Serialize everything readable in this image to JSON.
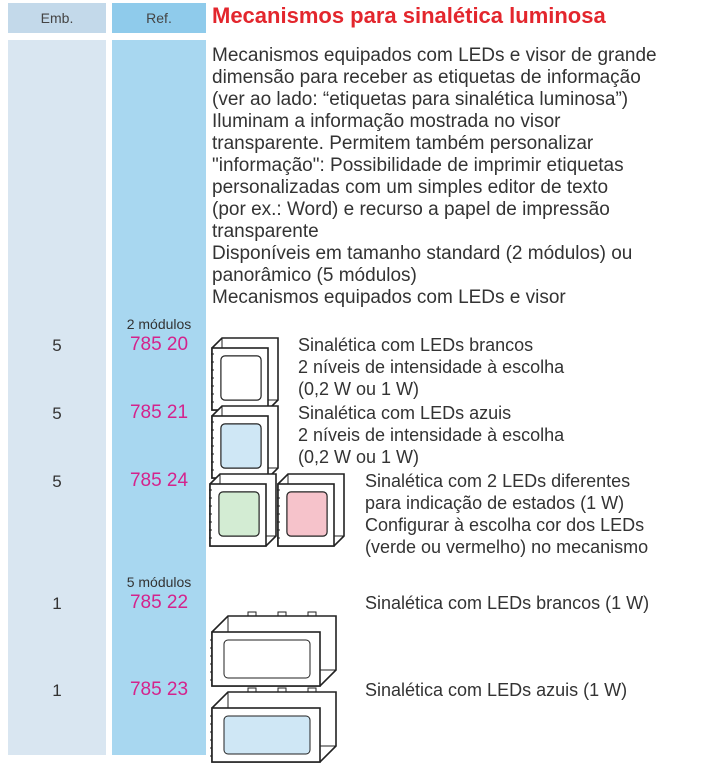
{
  "header": {
    "emb": "Emb.",
    "ref": "Ref.",
    "title": "Mecanismos para sinalética luminosa"
  },
  "description": [
    "Mecanismos equipados com LEDs e visor de grande",
    "dimensão para receber as etiquetas de informação",
    "(ver ao lado: “etiquetas para sinalética luminosa”)",
    "Iluminam a informação mostrada no visor",
    "transparente. Permitem também personalizar",
    "\"informação\": Possibilidade de imprimir etiquetas",
    "personalizadas com um simples editor de texto",
    "(por ex.: Word) e recurso a papel de impressão",
    "transparente",
    "Disponíveis em tamanho standard (2 módulos) ou",
    "panorâmico (5 módulos)",
    "Mecanismos equipados com LEDs e visor"
  ],
  "rows": [
    {
      "emb": "5",
      "group": "2 módulos",
      "ref": "785 20",
      "text": [
        "Sinalética com LEDs brancos",
        "2 níveis de intensidade à escolha",
        "(0,2 W ou 1 W)"
      ]
    },
    {
      "emb": "5",
      "ref": "785 21",
      "text": [
        "Sinalética com LEDs azuis",
        "2 níveis de intensidade à escolha",
        "(0,2 W ou 1 W)"
      ]
    },
    {
      "emb": "5",
      "ref": "785 24",
      "text": [
        "Sinalética com 2 LEDs diferentes",
        "para indicação de estados (1 W)",
        "Configurar à escolha cor dos LEDs",
        "(verde ou vermelho) no mecanismo"
      ]
    },
    {
      "emb": "1",
      "group": "5 módulos",
      "ref": "785 22",
      "text": [
        "Sinalética com LEDs brancos (1 W)"
      ]
    },
    {
      "emb": "1",
      "ref": "785 23",
      "text": [
        "Sinalética com LEDs azuis (1 W)"
      ]
    }
  ]
}
